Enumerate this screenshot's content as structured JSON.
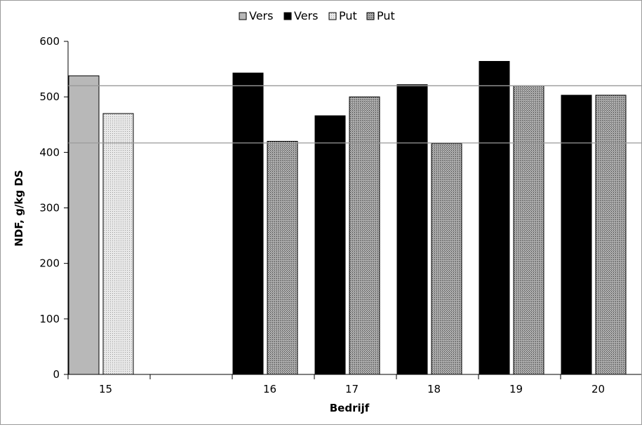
{
  "chart_data": {
    "type": "bar",
    "title": "",
    "xlabel": "Bedrijf",
    "ylabel": "NDF, g/kg DS",
    "ylim": [
      0,
      600
    ],
    "y_ticks": [
      "0",
      "100",
      "200",
      "300",
      "400",
      "500",
      "600"
    ],
    "categories": [
      "15",
      "",
      "16",
      "17",
      "18",
      "19",
      "20"
    ],
    "series": [
      {
        "name": "Vers",
        "color": "#b8b8b8",
        "pattern": "solid-gray",
        "values": [
          538,
          null,
          null,
          null,
          null,
          null,
          null
        ]
      },
      {
        "name": "Vers",
        "color": "#000000",
        "pattern": "solid-black",
        "values": [
          null,
          null,
          543,
          466,
          522,
          564,
          503
        ]
      },
      {
        "name": "Put",
        "color": "#dcdcdc",
        "pattern": "light-hatch",
        "values": [
          470,
          null,
          null,
          null,
          null,
          null,
          null
        ]
      },
      {
        "name": "Put",
        "color": "#8a8a8a",
        "pattern": "dark-hatch",
        "values": [
          null,
          null,
          420,
          500,
          416,
          520,
          503
        ]
      }
    ],
    "reference_lines": [
      520,
      417
    ],
    "legend_position": "top-center",
    "grid": false
  }
}
